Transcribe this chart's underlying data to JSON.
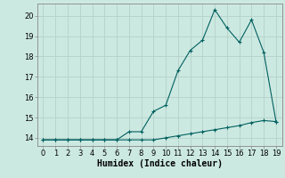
{
  "xlabel": "Humidex (Indice chaleur)",
  "x": [
    0,
    1,
    2,
    3,
    4,
    5,
    6,
    7,
    8,
    9,
    10,
    11,
    12,
    13,
    14,
    15,
    16,
    17,
    18,
    19
  ],
  "y_upper": [
    13.9,
    13.9,
    13.9,
    13.9,
    13.9,
    13.9,
    13.9,
    14.3,
    14.3,
    15.3,
    15.6,
    17.3,
    18.3,
    18.8,
    20.3,
    19.4,
    18.7,
    19.8,
    18.2,
    14.8
  ],
  "y_lower": [
    13.9,
    13.9,
    13.9,
    13.9,
    13.9,
    13.9,
    13.9,
    13.9,
    13.9,
    13.9,
    14.0,
    14.1,
    14.2,
    14.3,
    14.4,
    14.5,
    14.6,
    14.75,
    14.85,
    14.8
  ],
  "line_color": "#006060",
  "marker": "+",
  "bg_color": "#cce9e1",
  "grid_color": "#b8d4cc",
  "ylim": [
    13.6,
    20.6
  ],
  "xlim": [
    -0.5,
    19.5
  ],
  "yticks": [
    14,
    15,
    16,
    17,
    18,
    19,
    20
  ],
  "xticks": [
    0,
    1,
    2,
    3,
    4,
    5,
    6,
    7,
    8,
    9,
    10,
    11,
    12,
    13,
    14,
    15,
    16,
    17,
    18,
    19
  ],
  "tick_fontsize": 6,
  "xlabel_fontsize": 7
}
